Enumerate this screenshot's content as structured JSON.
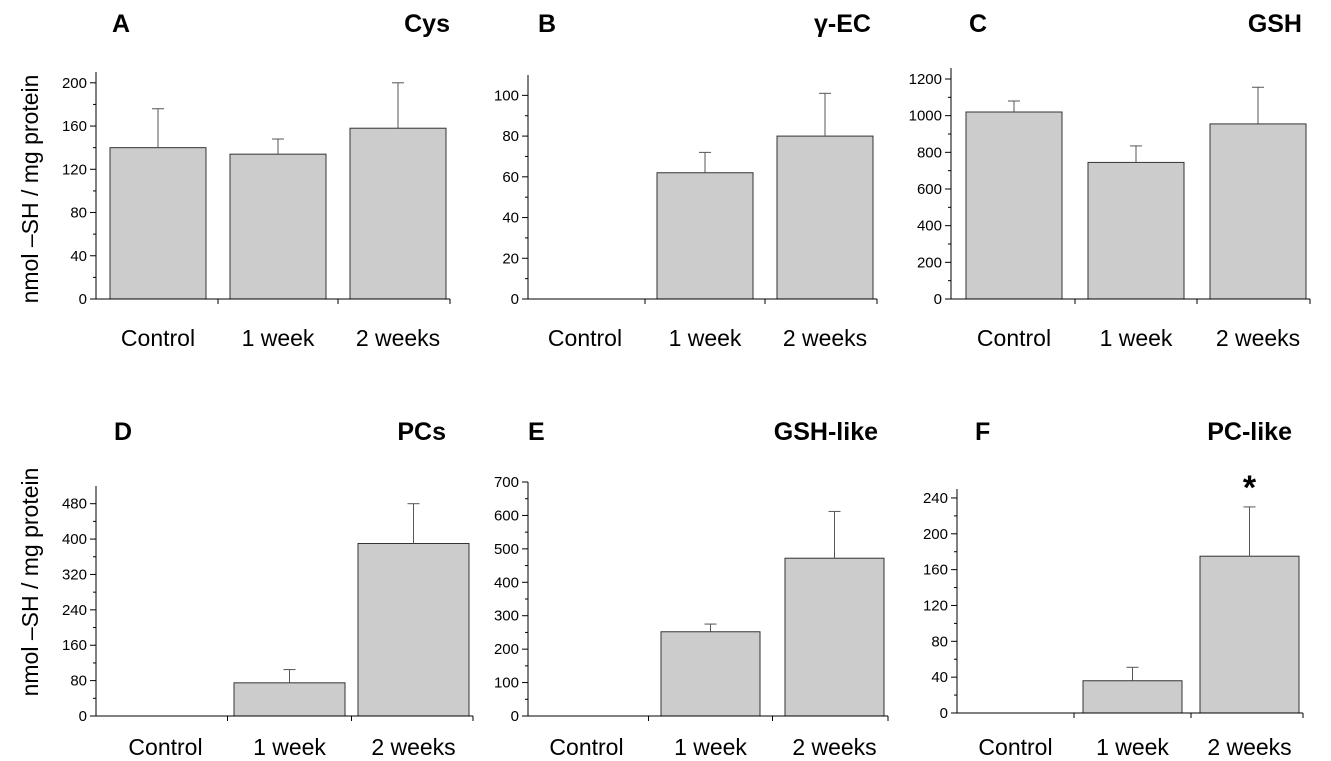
{
  "ylabel": "nmol –SH / mg protein",
  "colors": {
    "bar_fill": "#cccccc",
    "bar_stroke": "#333333",
    "error_bar": "#555555"
  },
  "chart_data": [
    {
      "type": "bar",
      "panel": "A",
      "title": "Cys",
      "categories": [
        "Control",
        "1 week",
        "2 weeks"
      ],
      "values": [
        140,
        134,
        158
      ],
      "errors": [
        36,
        14,
        42
      ],
      "ylim": [
        0,
        210
      ],
      "yticks": [
        0,
        40,
        80,
        120,
        160,
        200
      ]
    },
    {
      "type": "bar",
      "panel": "B",
      "title": "γ-EC",
      "categories": [
        "Control",
        "1 week",
        "2 weeks"
      ],
      "values": [
        0,
        62,
        80
      ],
      "errors": [
        0,
        10,
        21
      ],
      "ylim": [
        0,
        110
      ],
      "yticks": [
        0,
        20,
        40,
        60,
        80,
        100
      ]
    },
    {
      "type": "bar",
      "panel": "C",
      "title": "GSH",
      "categories": [
        "Control",
        "1 week",
        "2 weeks"
      ],
      "values": [
        1020,
        745,
        955
      ],
      "errors": [
        60,
        90,
        200
      ],
      "ylim": [
        0,
        1260
      ],
      "yticks": [
        0,
        200,
        400,
        600,
        800,
        1000,
        1200
      ]
    },
    {
      "type": "bar",
      "panel": "D",
      "title": "PCs",
      "categories": [
        "Control",
        "1 week",
        "2 weeks"
      ],
      "values": [
        0,
        75,
        390
      ],
      "errors": [
        0,
        30,
        90
      ],
      "ylim": [
        0,
        520
      ],
      "yticks": [
        0,
        80,
        160,
        240,
        320,
        400,
        480
      ]
    },
    {
      "type": "bar",
      "panel": "E",
      "title": "GSH-like",
      "categories": [
        "Control",
        "1 week",
        "2 weeks"
      ],
      "values": [
        0,
        252,
        472
      ],
      "errors": [
        0,
        23,
        140
      ],
      "ylim": [
        0,
        700
      ],
      "yticks": [
        0,
        100,
        200,
        300,
        400,
        500,
        600,
        700
      ]
    },
    {
      "type": "bar",
      "panel": "F",
      "title": "PC-like",
      "categories": [
        "Control",
        "1 week",
        "2 weeks"
      ],
      "values": [
        0,
        36,
        175
      ],
      "errors": [
        0,
        15,
        55
      ],
      "ylim": [
        0,
        250
      ],
      "yticks": [
        0,
        40,
        80,
        120,
        160,
        200,
        240
      ],
      "annotations": [
        {
          "category": "2 weeks",
          "text": "*"
        }
      ]
    }
  ]
}
